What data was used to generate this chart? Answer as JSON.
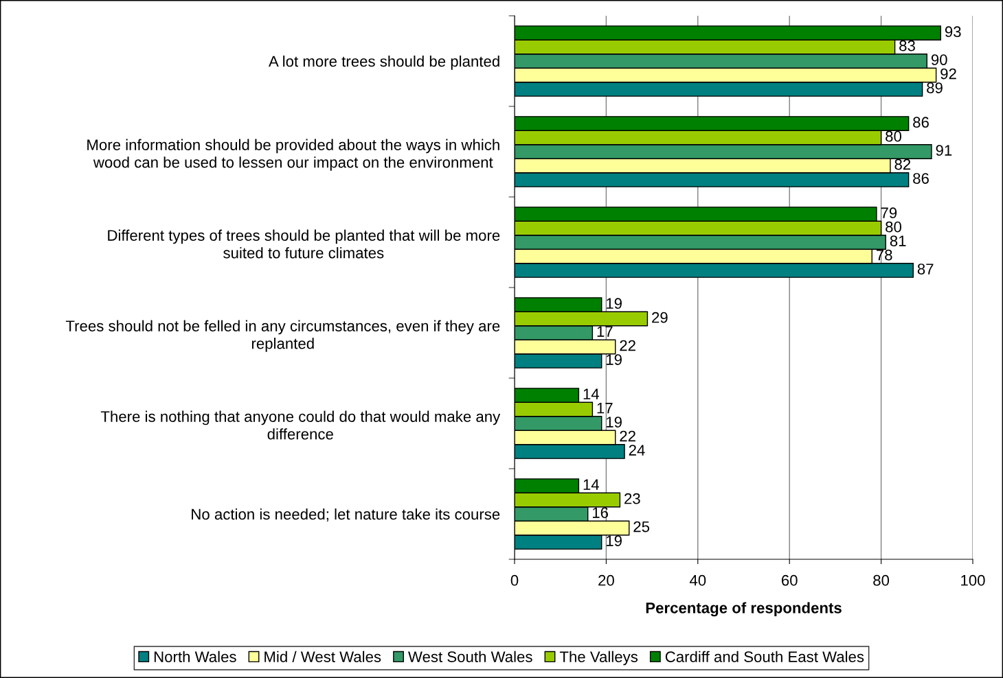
{
  "chart_data": {
    "type": "bar",
    "orientation": "horizontal",
    "categories": [
      "A lot more trees should be planted",
      "More information should be provided about the ways in which\nwood can be used to lessen our impact on the environment",
      "Different types of trees should be planted that will be more\nsuited to future climates",
      "Trees should not be felled in any circumstances, even if they are\nreplanted",
      "There is nothing that anyone could do that would make any\ndifference",
      "No action is needed; let nature take its course"
    ],
    "series": [
      {
        "name": "North Wales",
        "color": "#008080",
        "values": [
          89,
          86,
          87,
          19,
          24,
          19
        ]
      },
      {
        "name": "Mid / West Wales",
        "color": "#ffff99",
        "values": [
          92,
          82,
          78,
          22,
          22,
          25
        ]
      },
      {
        "name": "West South Wales",
        "color": "#339966",
        "values": [
          90,
          91,
          81,
          17,
          19,
          16
        ]
      },
      {
        "name": "The Valleys",
        "color": "#99cc00",
        "values": [
          83,
          80,
          80,
          29,
          17,
          23
        ]
      },
      {
        "name": "Cardiff and South East Wales",
        "color": "#008000",
        "values": [
          93,
          86,
          79,
          19,
          14,
          14
        ]
      }
    ],
    "xlim": [
      0,
      100
    ],
    "xticks": [
      0,
      20,
      40,
      60,
      80,
      100
    ],
    "xlabel": "Percentage of respondents",
    "grid": "x",
    "legend": "bottom",
    "data_labels": true
  }
}
